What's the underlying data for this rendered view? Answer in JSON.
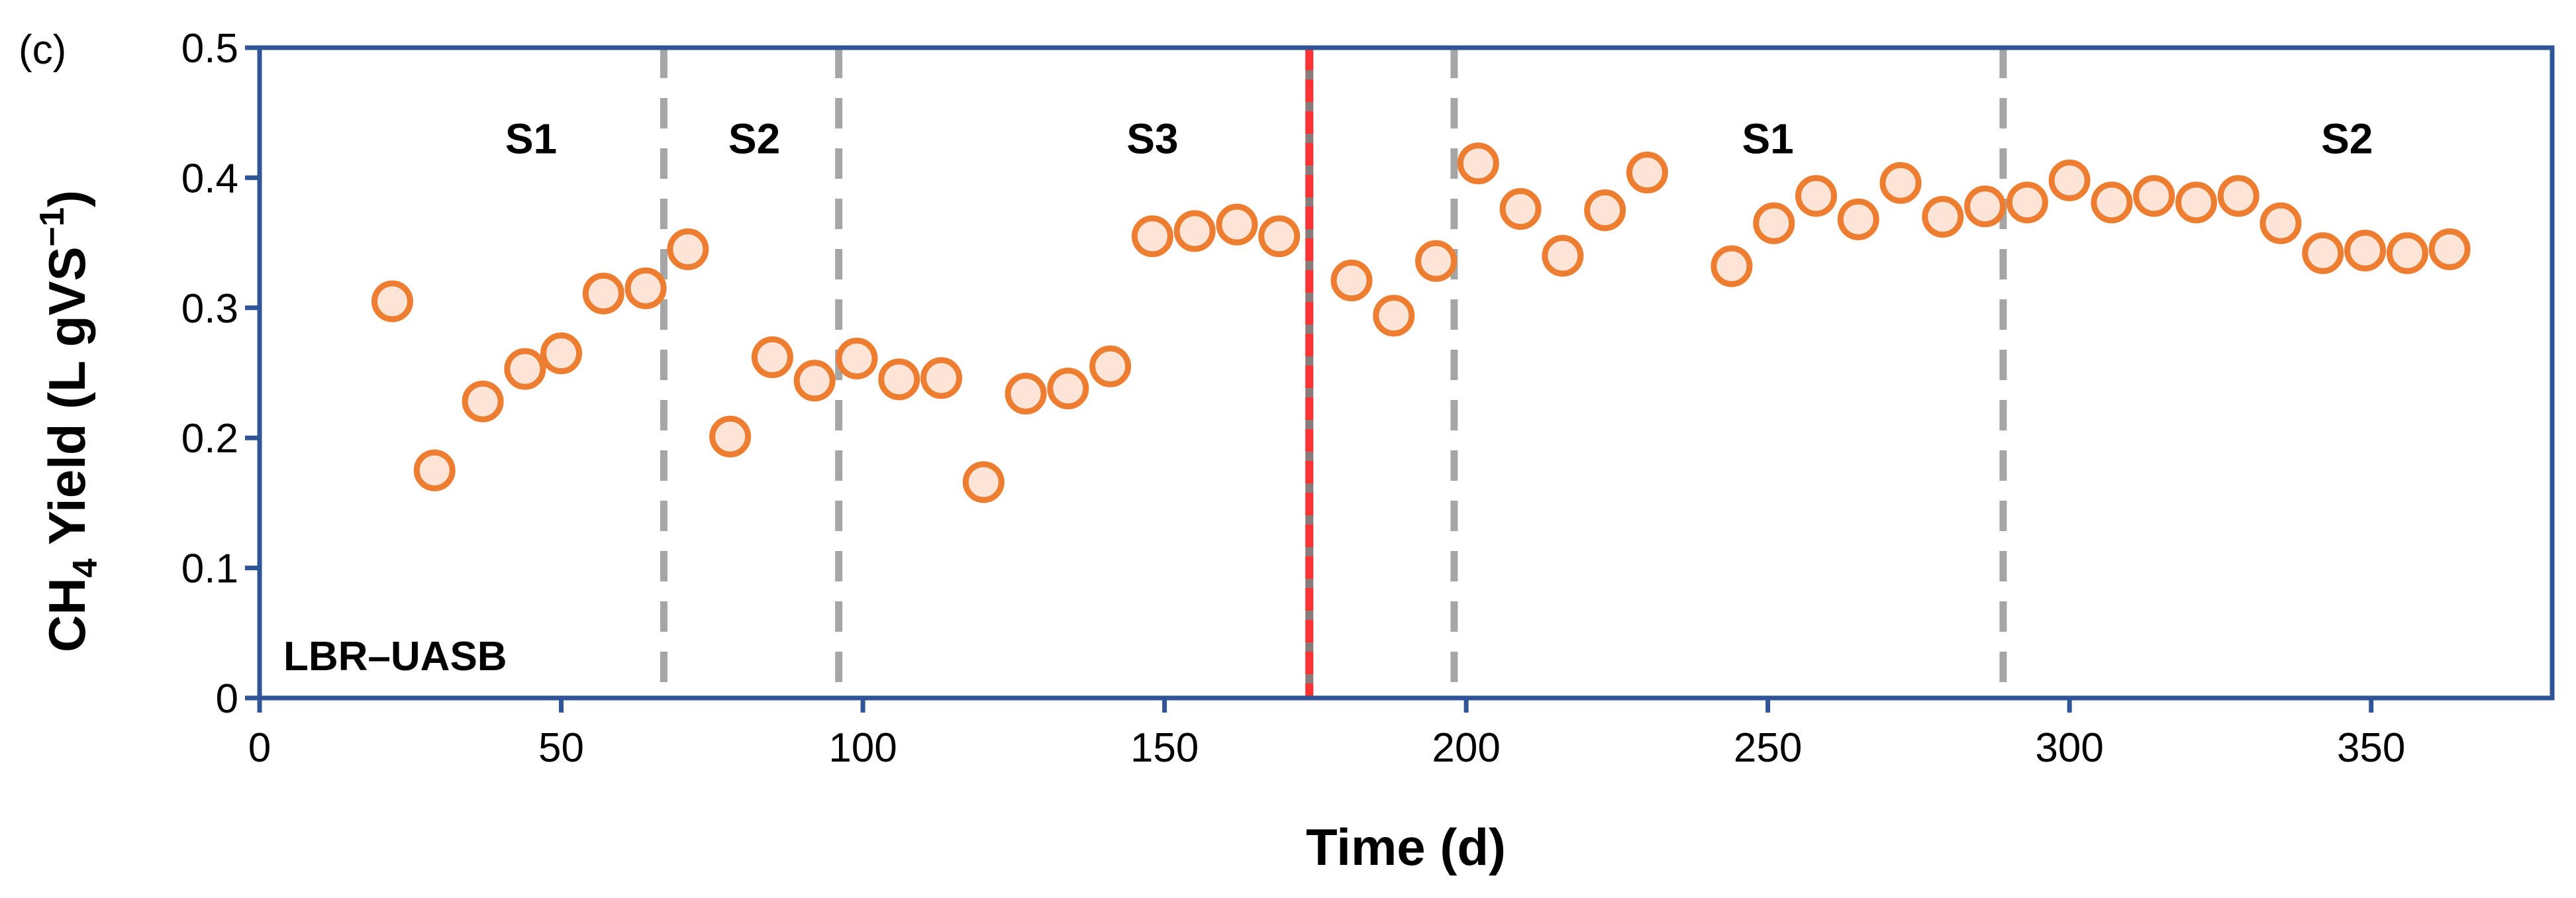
{
  "colors": {
    "frame": "#2f5597",
    "marker_stroke": "#ed7d31",
    "marker_fill": "#fce4d6",
    "divider": "#a6a6a6",
    "red_line": "#ff3333"
  },
  "chart_data": {
    "type": "scatter",
    "panel_label": "(c)",
    "reactor_label": "LBR–UASB",
    "xlabel": "Time (d)",
    "ylabel": {
      "prefix": "CH",
      "sub": "4",
      "middle": " Yield (L gVS",
      "sup": "−1",
      "suffix": ")"
    },
    "xlim": [
      0,
      380
    ],
    "ylim": [
      0,
      0.5
    ],
    "xticks": [
      0,
      50,
      100,
      150,
      200,
      250,
      300,
      350
    ],
    "yticks": [
      0,
      0.1,
      0.2,
      0.3,
      0.4,
      0.5
    ],
    "ytick_labels": [
      "0",
      "0.1",
      "0.2",
      "0.3",
      "0.4",
      "0.5"
    ],
    "dividers": [
      {
        "x": 67,
        "style": "dashed"
      },
      {
        "x": 96,
        "style": "dashed"
      },
      {
        "x": 174,
        "style": "red"
      },
      {
        "x": 198,
        "style": "dashed"
      },
      {
        "x": 289,
        "style": "dashed"
      }
    ],
    "phases": [
      {
        "label": "S1",
        "x": 45,
        "y": 0.43
      },
      {
        "label": "S2",
        "x": 82,
        "y": 0.43
      },
      {
        "label": "S3",
        "x": 148,
        "y": 0.43
      },
      {
        "label": "S1",
        "x": 250,
        "y": 0.43
      },
      {
        "label": "S2",
        "x": 346,
        "y": 0.43
      }
    ],
    "x": [
      22,
      29,
      37,
      44,
      50,
      57,
      64,
      71,
      78,
      85,
      92,
      99,
      106,
      113,
      120,
      127,
      134,
      141,
      148,
      155,
      162,
      169,
      181,
      188,
      195,
      202,
      209,
      216,
      223,
      230,
      244,
      251,
      258,
      265,
      272,
      279,
      286,
      293,
      300,
      307,
      314,
      321,
      328,
      335,
      342,
      349,
      356,
      363
    ],
    "y": [
      0.305,
      0.175,
      0.228,
      0.253,
      0.265,
      0.311,
      0.315,
      0.345,
      0.201,
      0.262,
      0.244,
      0.261,
      0.245,
      0.246,
      0.166,
      0.234,
      0.238,
      0.255,
      0.355,
      0.359,
      0.364,
      0.355,
      0.321,
      0.294,
      0.336,
      0.411,
      0.376,
      0.34,
      0.375,
      0.404,
      0.332,
      0.365,
      0.386,
      0.368,
      0.396,
      0.37,
      0.378,
      0.381,
      0.398,
      0.381,
      0.386,
      0.381,
      0.386,
      0.365,
      0.342,
      0.344,
      0.342,
      0.345
    ]
  }
}
